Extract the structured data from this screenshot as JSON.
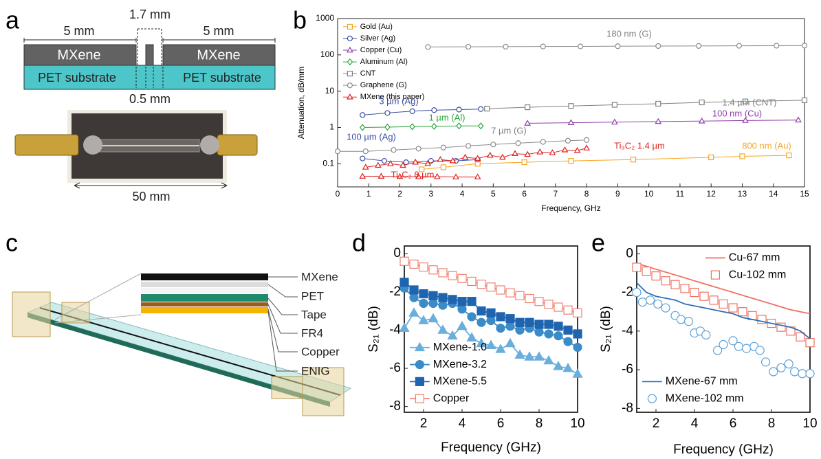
{
  "panel_labels": [
    "a",
    "b",
    "c",
    "d",
    "e"
  ],
  "diagram_a": {
    "dim_left": "5 mm",
    "dim_gap": "1.7 mm",
    "dim_right": "5 mm",
    "layer_left": "MXene",
    "layer_right": "MXene",
    "substrate_left": "PET substrate",
    "substrate_right": "PET substrate",
    "dim_slot": "0.5 mm",
    "dim_photo": "50 mm"
  },
  "diagram_c": {
    "layers": [
      "MXene",
      "PET",
      "Tape",
      "FR4",
      "Copper",
      "ENIG"
    ]
  },
  "chart_data": [
    {
      "type": "line",
      "log_y": true,
      "x_label": "Frequency, GHz",
      "y_label": "Attenuation, dB/mm",
      "xlim": [
        0,
        15
      ],
      "xticks": [
        0,
        1,
        2,
        3,
        4,
        5,
        6,
        7,
        8,
        9,
        10,
        11,
        12,
        13,
        14,
        15
      ],
      "ylim": [
        0.023,
        1000
      ],
      "yticks": [
        0.1,
        1,
        10,
        100,
        1000
      ],
      "legend": "upper left",
      "series": [
        {
          "name": "Gold (Au)",
          "color": "#f5a623",
          "marker": "square",
          "mode": "line+markers",
          "x": [
            2.7,
            3.4,
            4.5,
            6.0,
            7.5,
            9.5,
            12.0,
            13.0,
            14.5
          ],
          "values": [
            0.07,
            0.08,
            0.1,
            0.11,
            0.12,
            0.13,
            0.15,
            0.16,
            0.17
          ]
        },
        {
          "name": "Silver (Ag)",
          "color": "#3a4fa8",
          "marker": "circle",
          "mode": "line+markers",
          "x": [
            0.8,
            1.5,
            2.2,
            3.0,
            3.8,
            4.5,
            null,
            0.8,
            1.6,
            2.4,
            3.1,
            3.9,
            4.6
          ],
          "values": [
            0.14,
            0.12,
            0.11,
            0.12,
            0.12,
            0.13,
            null,
            2.2,
            2.5,
            2.8,
            3.0,
            3.1,
            3.2
          ]
        },
        {
          "name": "Copper (Cu)",
          "color": "#8e3fa6",
          "marker": "triangle",
          "mode": "line+markers",
          "x": [
            6.1,
            7.5,
            8.9,
            10.3,
            11.7,
            13.1,
            14.8
          ],
          "values": [
            1.3,
            1.35,
            1.4,
            1.45,
            1.5,
            1.55,
            1.6
          ]
        },
        {
          "name": "Aluminum (Al)",
          "color": "#2aa53a",
          "marker": "diamond",
          "mode": "line+markers",
          "x": [
            0.8,
            1.6,
            2.4,
            3.1,
            3.9,
            4.6
          ],
          "values": [
            1.0,
            1.02,
            1.05,
            1.07,
            1.1,
            1.1
          ]
        },
        {
          "name": "CNT",
          "color": "#808080",
          "marker": "square",
          "mode": "line+markers",
          "x": [
            4.8,
            6.1,
            7.5,
            8.9,
            10.3,
            11.7,
            13.1,
            15
          ],
          "values": [
            3.3,
            3.6,
            3.9,
            4.2,
            4.5,
            4.9,
            5.2,
            5.6
          ]
        },
        {
          "name": "Graphene (G)",
          "color": "#8a8a8a",
          "marker": "circle",
          "mode": "line+markers",
          "x": [
            0,
            0.9,
            1.8,
            2.6,
            3.4,
            4.2,
            5.0,
            5.8,
            6.6,
            7.4,
            8.0,
            null,
            2.9,
            4.2,
            5.4,
            6.6,
            7.8,
            9.0,
            10.3,
            11.6,
            12.9,
            14.1,
            15
          ],
          "values": [
            0.22,
            0.22,
            0.24,
            0.26,
            0.28,
            0.31,
            0.34,
            0.37,
            0.4,
            0.43,
            0.45,
            null,
            165,
            167,
            168,
            170,
            171,
            173,
            175,
            176,
            178,
            179,
            180
          ]
        },
        {
          "name": "MXene (this paper)",
          "color": "#e02020",
          "marker": "triangle",
          "mode": "line+markers",
          "x": [
            0.8,
            1.4,
            2.0,
            2.6,
            3.2,
            3.8,
            4.5,
            null,
            0.9,
            1.3,
            1.7,
            2.1,
            2.5,
            2.9,
            3.3,
            3.7,
            4.1,
            4.5,
            4.9,
            5.3,
            5.7,
            6.1,
            6.5,
            6.9,
            7.3,
            7.7,
            8.0
          ],
          "values": [
            0.045,
            0.045,
            0.044,
            0.044,
            0.044,
            0.043,
            0.043,
            null,
            0.08,
            0.09,
            0.1,
            0.09,
            0.11,
            0.1,
            0.13,
            0.12,
            0.15,
            0.14,
            0.17,
            0.15,
            0.19,
            0.18,
            0.21,
            0.2,
            0.24,
            0.23,
            0.27
          ]
        }
      ],
      "annotations": [
        {
          "text": "180 nm (G)",
          "color": "#808080"
        },
        {
          "text": "1.4 µm (CNT)",
          "color": "#808080"
        },
        {
          "text": "100 nm (Cu)",
          "color": "#8e3fa6"
        },
        {
          "text": "3 µm (Ag)",
          "color": "#3a4fa8"
        },
        {
          "text": "1 µm (Al)",
          "color": "#2aa53a"
        },
        {
          "text": "7 µm (G)",
          "color": "#808080"
        },
        {
          "text": "100 µm (Ag)",
          "color": "#3a4fa8"
        },
        {
          "text": "Ti₃C₂ 1.4 µm",
          "color": "#e02020"
        },
        {
          "text": "800 nm (Au)",
          "color": "#f5a623"
        },
        {
          "text": "Ti₃C₂ 8 µm",
          "color": "#e02020"
        }
      ]
    },
    {
      "type": "line",
      "log_y": false,
      "x_label": "Frequency (GHz)",
      "y_label": "S₂₁ (dB)",
      "xlim": [
        1,
        10
      ],
      "xticks": [
        2,
        4,
        6,
        8,
        10
      ],
      "ylim": [
        -8.3,
        0.4
      ],
      "yticks": [
        0,
        -2,
        -4,
        -6,
        -8
      ],
      "legend": "lower left",
      "series": [
        {
          "name": "MXene-1.0",
          "color": "#6aaedc",
          "marker": "triangle",
          "marker_fill": "filled",
          "mode": "line+markers",
          "x": [
            1,
            1.5,
            2,
            2.5,
            3,
            3.5,
            4,
            4.5,
            5,
            5.5,
            6,
            6.5,
            7,
            7.5,
            8,
            8.5,
            9,
            9.5,
            10
          ],
          "values": [
            -3.9,
            -3.1,
            -3.5,
            -3.4,
            -4.0,
            -4.3,
            -3.8,
            -4.4,
            -4.7,
            -4.8,
            -5.0,
            -4.7,
            -5.3,
            -5.4,
            -5.4,
            -5.6,
            -5.9,
            -6.0,
            -6.3
          ]
        },
        {
          "name": "MXene-3.2",
          "color": "#3a8bc8",
          "marker": "circle",
          "marker_fill": "filled",
          "mode": "line+markers",
          "x": [
            1,
            1.5,
            2,
            2.5,
            3,
            3.5,
            4,
            4.5,
            5,
            5.5,
            6,
            6.5,
            7,
            7.5,
            8,
            8.5,
            9,
            9.5,
            10
          ],
          "values": [
            -1.8,
            -2.3,
            -2.6,
            -2.6,
            -2.7,
            -2.6,
            -2.9,
            -3.3,
            -3.6,
            -3.5,
            -3.9,
            -3.8,
            -4.0,
            -3.9,
            -4.1,
            -4.2,
            -4.3,
            -4.6,
            -4.9
          ]
        },
        {
          "name": "MXene-5.5",
          "color": "#1f64ae",
          "marker": "square",
          "marker_fill": "filled",
          "mode": "line+markers",
          "x": [
            1,
            1.5,
            2,
            2.5,
            3,
            3.5,
            4,
            4.5,
            5,
            5.5,
            6,
            6.5,
            7,
            7.5,
            8,
            8.5,
            9,
            9.5,
            10
          ],
          "values": [
            -1.5,
            -1.9,
            -2.1,
            -2.2,
            -2.3,
            -2.4,
            -2.5,
            -2.5,
            -3.0,
            -3.1,
            -3.3,
            -3.4,
            -3.6,
            -3.6,
            -3.7,
            -3.7,
            -3.8,
            -4.0,
            -4.2
          ]
        },
        {
          "name": "Copper",
          "color": "#f08070",
          "marker": "square",
          "marker_fill": "open",
          "mode": "line+markers",
          "x": [
            1,
            1.5,
            2,
            2.5,
            3,
            3.5,
            4,
            4.5,
            5,
            5.5,
            6,
            6.5,
            7,
            7.5,
            8,
            8.5,
            9,
            9.5,
            10
          ],
          "values": [
            -0.4,
            -0.55,
            -0.7,
            -0.85,
            -1.0,
            -1.15,
            -1.3,
            -1.45,
            -1.6,
            -1.75,
            -1.9,
            -2.05,
            -2.2,
            -2.35,
            -2.5,
            -2.65,
            -2.8,
            -2.95,
            -3.1
          ]
        }
      ]
    },
    {
      "type": "line",
      "log_y": false,
      "x_label": "Frequency (GHz)",
      "y_label": "S₂₁ (dB)",
      "xlim": [
        1,
        10
      ],
      "xticks": [
        2,
        4,
        6,
        8,
        10
      ],
      "ylim": [
        -8.2,
        0.4
      ],
      "yticks": [
        0,
        -2,
        -4,
        -6,
        -8
      ],
      "series": [
        {
          "name": "Cu-67 mm",
          "color": "#f07060",
          "mode": "line",
          "legend_loc": "upper right",
          "x": [
            1,
            1.5,
            2,
            2.5,
            3,
            3.5,
            4,
            4.5,
            5,
            5.5,
            6,
            6.5,
            7,
            7.5,
            8,
            8.5,
            9,
            9.5,
            10
          ],
          "values": [
            -0.5,
            -0.65,
            -0.8,
            -0.95,
            -1.1,
            -1.25,
            -1.4,
            -1.55,
            -1.7,
            -1.85,
            -2.0,
            -2.15,
            -2.3,
            -2.45,
            -2.6,
            -2.75,
            -2.9,
            -3.0,
            -3.1
          ]
        },
        {
          "name": "Cu-102 mm",
          "color": "#f07060",
          "marker": "square",
          "marker_fill": "open",
          "mode": "markers",
          "legend_loc": "upper right",
          "x": [
            1,
            1.5,
            2,
            2.5,
            3,
            3.5,
            4,
            4.5,
            5,
            5.5,
            6,
            6.5,
            7,
            7.5,
            8,
            8.5,
            9,
            9.5,
            10
          ],
          "values": [
            -0.7,
            -0.9,
            -1.15,
            -1.4,
            -1.6,
            -1.8,
            -2.0,
            -2.2,
            -2.4,
            -2.6,
            -2.8,
            -3.0,
            -3.2,
            -3.4,
            -3.6,
            -3.8,
            -4.0,
            -4.3,
            -4.6
          ]
        },
        {
          "name": "MXene-67 mm",
          "color": "#2c6fb8",
          "mode": "line",
          "legend_loc": "lower left",
          "x": [
            1,
            1.5,
            2,
            2.5,
            3,
            3.5,
            4,
            4.5,
            5,
            5.5,
            6,
            6.5,
            7,
            7.5,
            8,
            8.5,
            9,
            9.5,
            10
          ],
          "values": [
            -1.5,
            -2.0,
            -2.2,
            -2.3,
            -2.4,
            -2.6,
            -2.7,
            -2.8,
            -2.9,
            -3.0,
            -3.1,
            -3.3,
            -3.4,
            -3.5,
            -3.6,
            -3.7,
            -3.8,
            -4.0,
            -4.4
          ]
        },
        {
          "name": "MXene-102 mm",
          "color": "#5aa0d8",
          "marker": "circle",
          "marker_fill": "open",
          "mode": "markers",
          "legend_loc": "lower left",
          "x": [
            1,
            1.3,
            1.7,
            2.1,
            2.5,
            3,
            3.3,
            3.7,
            4,
            4.3,
            4.6,
            5.2,
            5.5,
            6,
            6.3,
            6.7,
            7.1,
            7.4,
            7.7,
            8.1,
            8.5,
            8.9,
            9.2,
            9.6,
            10
          ],
          "values": [
            -2.0,
            -2.5,
            -2.4,
            -2.6,
            -2.8,
            -3.2,
            -3.4,
            -3.5,
            -4.1,
            -4.0,
            -4.2,
            -5.0,
            -4.7,
            -4.5,
            -4.8,
            -4.9,
            -4.8,
            -5.0,
            -5.6,
            -6.1,
            -5.9,
            -5.7,
            -6.1,
            -6.2,
            -6.2
          ]
        }
      ]
    }
  ]
}
